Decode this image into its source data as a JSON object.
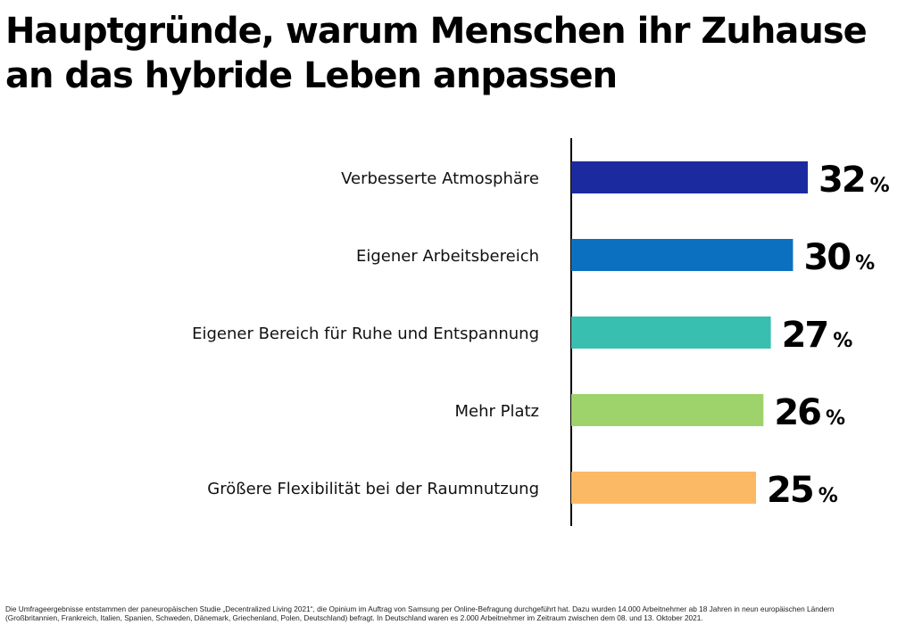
{
  "title": {
    "line1": "Hauptgründe, warum Menschen ihr Zuhause",
    "line2": "an das hybride Leben anpassen"
  },
  "chart_data": {
    "type": "bar",
    "orientation": "horizontal",
    "categories": [
      "Verbesserte Atmosphäre",
      "Eigener Arbeitsbereich",
      "Eigener Bereich für Ruhe und Entspannung",
      "Mehr Platz",
      "Größere Flexibilität bei der Raumnutzung"
    ],
    "values": [
      32,
      30,
      27,
      26,
      25
    ],
    "unit": "%",
    "colors": [
      "#1c2aa0",
      "#0c70c0",
      "#38bfb0",
      "#9ed26b",
      "#fbb965"
    ],
    "xlim": [
      0,
      40
    ],
    "grid": false,
    "legend": false
  },
  "footnote": {
    "line1": "Die Umfrageergebnisse entstammen der paneuropäischen Studie „Decentralized Living 2021“, die Opinium im Auftrag von Samsung per Online-Befragung durchgeführt hat. Dazu wurden 14.000 Arbeitnehmer ab 18 Jahren in neun europäischen Ländern",
    "line2": "(Großbritannien, Frankreich, Italien, Spanien, Schweden, Dänemark, Griechenland, Polen, Deutschland) befragt. In Deutschland waren es 2.000 Arbeitnehmer im Zeitraum zwischen dem 08. und 13. Oktober 2021."
  }
}
